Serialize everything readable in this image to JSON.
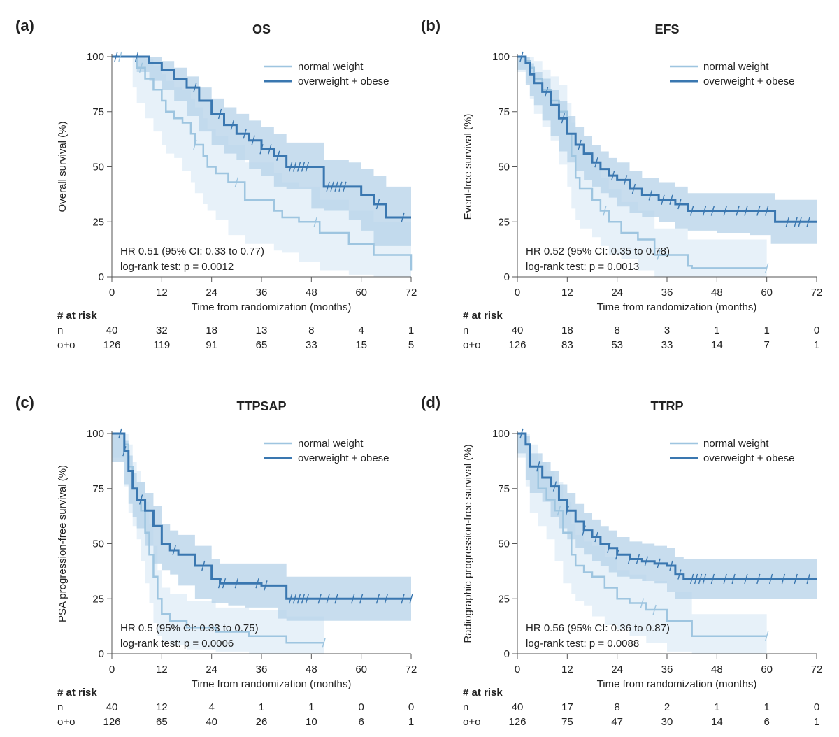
{
  "chart_data": [
    {
      "type": "line",
      "panel_label": "(a)",
      "title": "OS",
      "xlabel": "Time from randomization (months)",
      "ylabel": "Overall survival (%)",
      "xlim": [
        0,
        72
      ],
      "ylim": [
        0,
        100
      ],
      "xticks": [
        0,
        12,
        24,
        36,
        48,
        60,
        72
      ],
      "yticks": [
        0,
        25,
        50,
        75,
        100
      ],
      "legend_position": "top-right",
      "series": [
        {
          "name": "normal weight",
          "color": "#9ec5e0",
          "band_color": "#e3eff8",
          "x": [
            0,
            5,
            6,
            8,
            10,
            12,
            13,
            15,
            17,
            19,
            20,
            22,
            23,
            25,
            28,
            32,
            39,
            41,
            45,
            50,
            57,
            63,
            72
          ],
          "y": [
            100,
            100,
            95,
            90,
            85,
            80,
            75,
            72,
            70,
            65,
            60,
            55,
            50,
            47,
            43,
            35,
            30,
            27,
            25,
            20,
            15,
            10,
            3
          ],
          "lower": [
            100,
            100,
            86,
            79,
            72,
            66,
            60,
            56,
            54,
            48,
            43,
            38,
            33,
            30,
            26,
            19,
            15,
            12,
            11,
            7,
            3,
            1,
            0
          ],
          "upper": [
            100,
            100,
            100,
            99,
            96,
            92,
            89,
            86,
            85,
            81,
            77,
            72,
            67,
            64,
            60,
            52,
            47,
            43,
            41,
            35,
            30,
            25,
            15
          ],
          "censor_x": [
            2,
            7,
            20,
            30,
            49
          ]
        },
        {
          "name": "overweight + obese",
          "color": "#3a77b0",
          "band_color": "#b5d1e8",
          "x": [
            0,
            6,
            9,
            12,
            15,
            18,
            21,
            24,
            27,
            30,
            33,
            36,
            39,
            42,
            48,
            51,
            57,
            60,
            63,
            66,
            72
          ],
          "y": [
            100,
            100,
            97,
            94,
            90,
            86,
            80,
            74,
            69,
            65,
            62,
            58,
            55,
            50,
            50,
            41,
            41,
            37,
            33,
            27,
            27
          ],
          "lower": [
            100,
            100,
            93,
            89,
            85,
            80,
            73,
            66,
            60,
            56,
            53,
            49,
            46,
            41,
            40,
            31,
            30,
            26,
            21,
            14,
            14
          ],
          "upper": [
            100,
            100,
            100,
            98,
            95,
            91,
            86,
            81,
            77,
            74,
            71,
            68,
            65,
            61,
            61,
            53,
            52,
            49,
            46,
            41,
            41
          ],
          "censor_x": [
            1,
            6,
            20,
            26,
            29,
            32,
            34,
            36,
            38,
            40,
            43,
            44,
            45,
            46,
            47,
            52,
            53,
            54,
            55,
            56,
            64,
            70
          ]
        }
      ],
      "annotations": [
        "HR 0.51 (95% CI: 0.33 to 0.77)",
        "log-rank test: p =  0.0012"
      ],
      "risk_table": {
        "heading": "# at risk",
        "times": [
          0,
          12,
          24,
          36,
          48,
          60,
          72
        ],
        "rows": [
          {
            "label": "n",
            "values": [
              40,
              32,
              18,
              13,
              8,
              4,
              1
            ]
          },
          {
            "label": "o+o",
            "values": [
              126,
              119,
              91,
              65,
              33,
              15,
              5
            ]
          }
        ]
      }
    },
    {
      "type": "line",
      "panel_label": "(b)",
      "title": "EFS",
      "xlabel": "Time from randomization (months)",
      "ylabel": "Event-free survival (%)",
      "xlim": [
        0,
        72
      ],
      "ylim": [
        0,
        100
      ],
      "xticks": [
        0,
        12,
        24,
        36,
        48,
        60,
        72
      ],
      "yticks": [
        0,
        25,
        50,
        75,
        100
      ],
      "legend_position": "top-right",
      "series": [
        {
          "name": "normal weight",
          "color": "#9ec5e0",
          "band_color": "#e3eff8",
          "x": [
            0,
            2,
            3,
            4,
            6,
            8,
            10,
            12,
            13,
            14,
            15,
            18,
            20,
            22,
            25,
            29,
            33,
            41,
            42,
            60
          ],
          "y": [
            100,
            98,
            95,
            90,
            85,
            80,
            75,
            65,
            55,
            45,
            40,
            35,
            30,
            25,
            20,
            17,
            10,
            5,
            4,
            4
          ],
          "lower": [
            100,
            93,
            88,
            81,
            74,
            68,
            62,
            51,
            41,
            31,
            26,
            22,
            18,
            14,
            10,
            8,
            3,
            0,
            0,
            0
          ],
          "upper": [
            100,
            100,
            100,
            98,
            94,
            91,
            87,
            79,
            70,
            61,
            56,
            51,
            45,
            40,
            34,
            30,
            22,
            17,
            17,
            17
          ],
          "censor_x": [
            1,
            21,
            34,
            60
          ]
        },
        {
          "name": "overweight + obese",
          "color": "#3a77b0",
          "band_color": "#b5d1e8",
          "x": [
            0,
            2,
            3,
            4,
            6,
            8,
            10,
            12,
            14,
            16,
            18,
            20,
            22,
            24,
            27,
            30,
            34,
            38,
            41,
            48,
            56,
            61,
            62,
            72
          ],
          "y": [
            100,
            97,
            92,
            88,
            84,
            78,
            72,
            65,
            60,
            56,
            52,
            49,
            46,
            44,
            40,
            37,
            35,
            33,
            30,
            30,
            30,
            30,
            25,
            25
          ],
          "lower": [
            100,
            94,
            87,
            82,
            78,
            71,
            64,
            57,
            52,
            48,
            44,
            41,
            38,
            36,
            32,
            29,
            27,
            25,
            22,
            21,
            20,
            19,
            15,
            15
          ],
          "upper": [
            100,
            100,
            97,
            93,
            90,
            85,
            80,
            73,
            68,
            64,
            60,
            57,
            54,
            52,
            48,
            45,
            43,
            41,
            38,
            38,
            38,
            38,
            35,
            35
          ],
          "censor_x": [
            1,
            7,
            11,
            15,
            19,
            23,
            26,
            28,
            32,
            35,
            37,
            39,
            42,
            45,
            47,
            50,
            53,
            55,
            58,
            60,
            65,
            67,
            68,
            70
          ]
        }
      ],
      "annotations": [
        "HR 0.52 (95% CI: 0.35 to 0.78)",
        "log-rank test: p =  0.0013"
      ],
      "risk_table": {
        "heading": "# at risk",
        "times": [
          0,
          12,
          24,
          36,
          48,
          60,
          72
        ],
        "rows": [
          {
            "label": "n",
            "values": [
              40,
              18,
              8,
              3,
              1,
              1,
              0
            ]
          },
          {
            "label": "o+o",
            "values": [
              126,
              83,
              53,
              33,
              14,
              7,
              1
            ]
          }
        ]
      }
    },
    {
      "type": "line",
      "panel_label": "(c)",
      "title": "TTPSAP",
      "xlabel": "Time from randomization (months)",
      "ylabel": "PSA progression-free survival (%)",
      "xlim": [
        0,
        72
      ],
      "ylim": [
        0,
        100
      ],
      "xticks": [
        0,
        12,
        24,
        36,
        48,
        60,
        72
      ],
      "yticks": [
        0,
        25,
        50,
        75,
        100
      ],
      "legend_position": "top-right",
      "series": [
        {
          "name": "normal weight",
          "color": "#9ec5e0",
          "band_color": "#e3eff8",
          "x": [
            0,
            3,
            4,
            5,
            6,
            7,
            8,
            9,
            10,
            11,
            12,
            14,
            18,
            25,
            33,
            42,
            51
          ],
          "y": [
            100,
            95,
            85,
            75,
            70,
            65,
            55,
            45,
            35,
            25,
            18,
            15,
            12,
            10,
            8,
            5,
            5
          ],
          "lower": [
            100,
            89,
            76,
            64,
            58,
            52,
            42,
            32,
            23,
            14,
            8,
            6,
            4,
            2,
            1,
            0,
            0
          ],
          "upper": [
            100,
            100,
            95,
            87,
            83,
            78,
            69,
            59,
            49,
            38,
            30,
            27,
            24,
            21,
            20,
            17,
            17
          ],
          "censor_x": [
            2,
            51
          ]
        },
        {
          "name": "overweight + obese",
          "color": "#3a77b0",
          "band_color": "#b5d1e8",
          "x": [
            0,
            3,
            4,
            5,
            6,
            8,
            10,
            12,
            14,
            16,
            20,
            24,
            26,
            28,
            32,
            36,
            40,
            42,
            48,
            60,
            72
          ],
          "y": [
            100,
            92,
            83,
            75,
            70,
            65,
            58,
            50,
            47,
            45,
            40,
            34,
            32,
            32,
            32,
            31,
            31,
            25,
            25,
            25,
            25
          ],
          "lower": [
            100,
            87,
            77,
            68,
            62,
            57,
            49,
            41,
            38,
            36,
            31,
            25,
            23,
            23,
            22,
            21,
            21,
            16,
            15,
            15,
            15
          ],
          "upper": [
            100,
            97,
            90,
            82,
            78,
            73,
            67,
            59,
            56,
            54,
            49,
            43,
            41,
            41,
            41,
            41,
            41,
            35,
            35,
            35,
            35
          ],
          "censor_x": [
            2,
            3,
            7,
            15,
            22,
            26,
            27,
            30,
            35,
            37,
            43,
            44,
            45,
            46,
            47,
            50,
            52,
            54,
            58,
            60,
            64,
            66,
            70,
            72
          ]
        }
      ],
      "annotations": [
        "HR 0.5 (95% CI: 0.33 to 0.75)",
        "log-rank test: p = 0.0006"
      ],
      "risk_table": {
        "heading": "# at risk",
        "times": [
          0,
          12,
          24,
          36,
          48,
          60,
          72
        ],
        "rows": [
          {
            "label": "n",
            "values": [
              40,
              12,
              4,
              1,
              1,
              0,
              0
            ]
          },
          {
            "label": "o+o",
            "values": [
              126,
              65,
              40,
              26,
              10,
              6,
              1
            ]
          }
        ]
      }
    },
    {
      "type": "line",
      "panel_label": "(d)",
      "title": "TTRP",
      "xlabel": "Time from randomization (months)",
      "ylabel": "Radiographic progression-free survival (%)",
      "xlim": [
        0,
        72
      ],
      "ylim": [
        0,
        100
      ],
      "xticks": [
        0,
        12,
        24,
        36,
        48,
        60,
        72
      ],
      "yticks": [
        0,
        25,
        50,
        75,
        100
      ],
      "legend_position": "top-right",
      "series": [
        {
          "name": "normal weight",
          "color": "#9ec5e0",
          "band_color": "#e3eff8",
          "x": [
            0,
            2,
            3,
            5,
            7,
            9,
            11,
            13,
            14,
            16,
            18,
            21,
            24,
            27,
            31,
            36,
            42,
            60
          ],
          "y": [
            100,
            95,
            85,
            75,
            70,
            65,
            55,
            45,
            40,
            37,
            35,
            30,
            25,
            23,
            20,
            15,
            8,
            8
          ],
          "lower": [
            100,
            89,
            76,
            64,
            58,
            52,
            42,
            32,
            27,
            24,
            22,
            17,
            13,
            11,
            8,
            5,
            1,
            0
          ],
          "upper": [
            100,
            100,
            95,
            87,
            83,
            78,
            69,
            59,
            54,
            51,
            49,
            44,
            38,
            36,
            33,
            28,
            18,
            18
          ],
          "censor_x": [
            1,
            10,
            30,
            33,
            60
          ]
        },
        {
          "name": "overweight + obese",
          "color": "#3a77b0",
          "band_color": "#b5d1e8",
          "x": [
            0,
            2,
            3,
            6,
            8,
            10,
            12,
            14,
            16,
            18,
            20,
            22,
            24,
            27,
            30,
            33,
            36,
            38,
            40,
            48,
            60,
            72
          ],
          "y": [
            100,
            95,
            85,
            80,
            76,
            70,
            65,
            60,
            56,
            53,
            50,
            48,
            45,
            43,
            42,
            41,
            40,
            36,
            34,
            34,
            34,
            34
          ],
          "lower": [
            100,
            91,
            79,
            73,
            69,
            62,
            57,
            52,
            48,
            45,
            42,
            40,
            37,
            35,
            34,
            33,
            32,
            28,
            25,
            25,
            25,
            25
          ],
          "upper": [
            100,
            99,
            91,
            87,
            83,
            77,
            73,
            68,
            64,
            61,
            58,
            56,
            53,
            51,
            50,
            49,
            48,
            44,
            43,
            43,
            43,
            43
          ],
          "censor_x": [
            1,
            5,
            9,
            12,
            16,
            19,
            22,
            24,
            27,
            29,
            31,
            34,
            37,
            39,
            42,
            43,
            44,
            45,
            47,
            50,
            52,
            55,
            58,
            61,
            64,
            67,
            70
          ]
        }
      ],
      "annotations": [
        "HR 0.56 (95% CI: 0.36 to 0.87)",
        "log-rank test: p =  0.0088"
      ],
      "risk_table": {
        "heading": "# at risk",
        "times": [
          0,
          12,
          24,
          36,
          48,
          60,
          72
        ],
        "rows": [
          {
            "label": "n",
            "values": [
              40,
              17,
              8,
              2,
              1,
              1,
              0
            ]
          },
          {
            "label": "o+o",
            "values": [
              126,
              75,
              47,
              30,
              14,
              6,
              1
            ]
          }
        ]
      }
    }
  ]
}
